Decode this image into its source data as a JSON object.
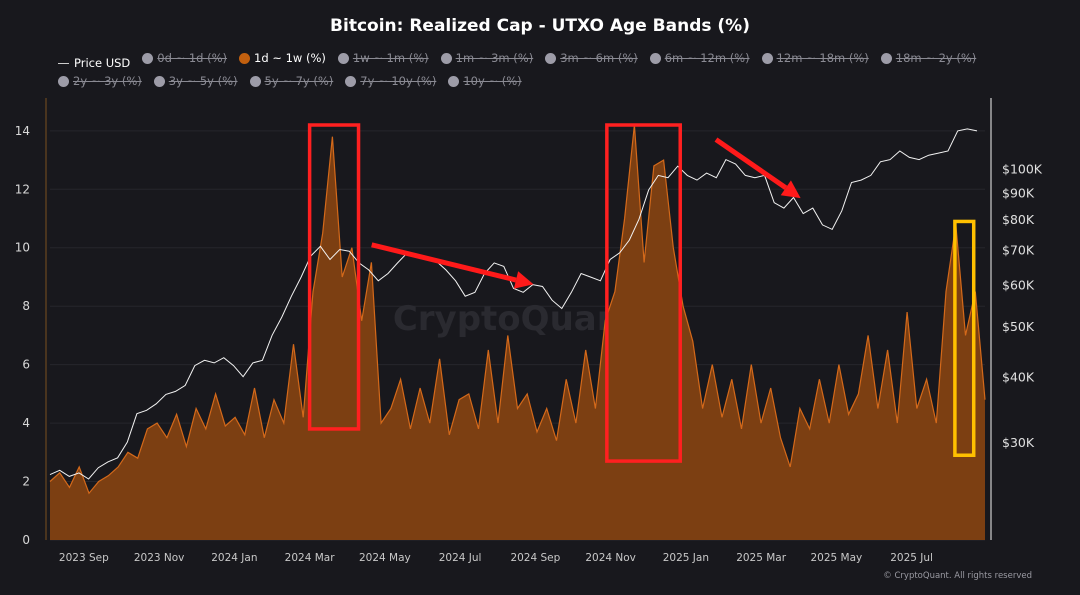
{
  "chart_data": {
    "type": "area",
    "title": "Bitcoin: Realized Cap - UTXO Age Bands (%)",
    "legend": [
      {
        "label": "Price USD",
        "active": true,
        "kind": "line"
      },
      {
        "label": "0d ~ 1d (%)",
        "active": false
      },
      {
        "label": "1d ~ 1w (%)",
        "active": true
      },
      {
        "label": "1w ~ 1m (%)",
        "active": false
      },
      {
        "label": "1m ~ 3m (%)",
        "active": false
      },
      {
        "label": "3m ~ 6m (%)",
        "active": false
      },
      {
        "label": "6m ~ 12m (%)",
        "active": false
      },
      {
        "label": "12m ~ 18m (%)",
        "active": false
      },
      {
        "label": "18m ~ 2y (%)",
        "active": false
      },
      {
        "label": "2y ~ 3y (%)",
        "active": false
      },
      {
        "label": "3y ~ 5y (%)",
        "active": false
      },
      {
        "label": "5y ~ 7y (%)",
        "active": false
      },
      {
        "label": "7y ~ 10y (%)",
        "active": false
      },
      {
        "label": "10y ~ (%)",
        "active": false
      }
    ],
    "x_range_months": [
      -0.9,
      23.95
    ],
    "x_ticks": [
      {
        "label": "2023 Sep",
        "m": 0
      },
      {
        "label": "2023 Nov",
        "m": 2
      },
      {
        "label": "2024 Jan",
        "m": 4
      },
      {
        "label": "2024 Mar",
        "m": 6
      },
      {
        "label": "2024 May",
        "m": 8
      },
      {
        "label": "2024 Jul",
        "m": 10
      },
      {
        "label": "2024 Sep",
        "m": 12
      },
      {
        "label": "2024 Nov",
        "m": 14
      },
      {
        "label": "2025 Jan",
        "m": 16
      },
      {
        "label": "2025 Mar",
        "m": 18
      },
      {
        "label": "2025 May",
        "m": 20
      },
      {
        "label": "2025 Jul",
        "m": 22
      }
    ],
    "y_left": {
      "ticks": [
        0,
        2,
        4,
        6,
        8,
        10,
        12,
        14
      ],
      "ylim": [
        0,
        14.2
      ]
    },
    "y_right": {
      "scale": "log",
      "ticks": [
        {
          "v": 30000,
          "label": "$30K"
        },
        {
          "v": 40000,
          "label": "$40K"
        },
        {
          "v": 50000,
          "label": "$50K"
        },
        {
          "v": 60000,
          "label": "$60K"
        },
        {
          "v": 70000,
          "label": "$70K"
        },
        {
          "v": 80000,
          "label": "$80K"
        },
        {
          "v": 90000,
          "label": "$90K"
        },
        {
          "v": 100000,
          "label": "$100K"
        }
      ],
      "ylim": [
        19500,
        140000
      ]
    },
    "series": [
      {
        "name": "1d ~ 1w (%)",
        "color": "#c2600f",
        "values": [
          2.0,
          2.3,
          1.8,
          2.5,
          1.6,
          2.0,
          2.2,
          2.5,
          3.0,
          2.8,
          3.8,
          4.0,
          3.5,
          4.3,
          3.2,
          4.5,
          3.8,
          5.0,
          3.9,
          4.2,
          3.6,
          5.2,
          3.5,
          4.8,
          4.0,
          6.7,
          4.2,
          8.5,
          10.5,
          13.8,
          9.0,
          10.0,
          7.5,
          9.5,
          4.0,
          4.5,
          5.5,
          3.8,
          5.2,
          4.0,
          6.2,
          3.6,
          4.8,
          5.0,
          3.8,
          6.5,
          4.0,
          7.0,
          4.5,
          5.0,
          3.7,
          4.5,
          3.4,
          5.5,
          4.0,
          6.5,
          4.5,
          7.5,
          8.5,
          11.0,
          14.2,
          9.5,
          12.8,
          13.0,
          10.0,
          8.0,
          6.8,
          4.5,
          6.0,
          4.2,
          5.5,
          3.8,
          6.0,
          4.0,
          5.2,
          3.5,
          2.5,
          4.5,
          3.8,
          5.5,
          4.0,
          6.0,
          4.3,
          5.0,
          7.0,
          4.5,
          6.5,
          4.0,
          7.8,
          4.5,
          5.5,
          4.0,
          8.5,
          10.8,
          7.0,
          8.5,
          4.8
        ]
      },
      {
        "name": "Price USD",
        "color": "#ffffff",
        "axis": "right",
        "values": [
          26000,
          26500,
          25800,
          26200,
          25500,
          26800,
          27500,
          28000,
          30000,
          34000,
          34500,
          35500,
          37000,
          37500,
          38500,
          42000,
          43000,
          42500,
          43500,
          42000,
          40000,
          42500,
          43000,
          48000,
          52000,
          57000,
          62000,
          68000,
          71000,
          67000,
          70000,
          69500,
          66000,
          64000,
          61000,
          63000,
          66000,
          69000,
          68000,
          67000,
          66500,
          64000,
          61000,
          57000,
          58000,
          63000,
          66000,
          65000,
          59000,
          58000,
          60000,
          59500,
          56000,
          54000,
          58000,
          63000,
          62000,
          61000,
          67000,
          69000,
          73000,
          80000,
          91000,
          97000,
          96000,
          101000,
          97000,
          95000,
          98000,
          96000,
          104000,
          102000,
          97000,
          96000,
          97000,
          86000,
          84000,
          88000,
          82000,
          84000,
          78000,
          76500,
          83000,
          94000,
          95000,
          97000,
          103000,
          104000,
          108000,
          105000,
          104000,
          106000,
          107000,
          108000,
          118000,
          119000,
          118000
        ]
      }
    ],
    "annotations": [
      {
        "type": "box",
        "color": "#ff2020",
        "range_m": [
          6.0,
          7.3
        ],
        "y": [
          3.8,
          14.2
        ]
      },
      {
        "type": "box",
        "color": "#ff2020",
        "range_m": [
          13.9,
          15.85
        ],
        "y": [
          2.7,
          14.2
        ]
      },
      {
        "type": "box",
        "color": "#ffc000",
        "range_m": [
          23.15,
          23.65
        ],
        "y": [
          2.9,
          10.9
        ]
      },
      {
        "type": "arrow",
        "color": "#ff1a1a",
        "from_m": 7.65,
        "from_y": 10.1,
        "to_m": 11.95,
        "to_y": 8.75
      },
      {
        "type": "arrow",
        "color": "#ff1a1a",
        "from_m": 16.8,
        "from_y": 13.7,
        "to_m": 19.05,
        "to_y": 11.7
      }
    ],
    "watermark": "CryptoQuant",
    "credit": "© CryptoQuant. All rights reserved"
  }
}
